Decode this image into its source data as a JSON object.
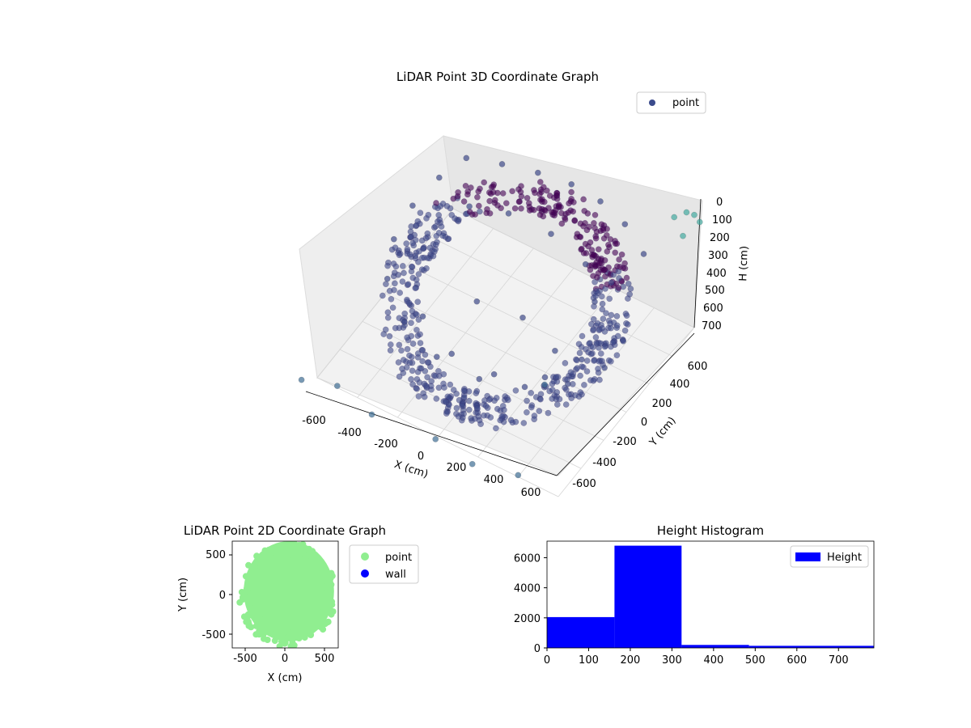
{
  "chart_data": [
    {
      "type": "scatter",
      "title": "LiDAR Point 3D Coordinate Graph",
      "xlabel": "X (cm)",
      "ylabel": "Y (cm)",
      "zlabel": "H (cm)",
      "x_ticks": [
        "-600",
        "-400",
        "-200",
        "0",
        "200",
        "400",
        "600"
      ],
      "y_ticks": [
        "-600",
        "-400",
        "-200",
        "0",
        "200",
        "400",
        "600"
      ],
      "z_ticks": [
        "0",
        "100",
        "200",
        "300",
        "400",
        "500",
        "600",
        "700"
      ],
      "xlim": [
        -600,
        600
      ],
      "ylim": [
        -600,
        600
      ],
      "zlim": [
        0,
        700
      ],
      "z_axis_inverted": true,
      "legend": [
        {
          "label": "point",
          "color": "#3b4b8c"
        }
      ],
      "legend_position": "top-right",
      "grid": true,
      "colormap": "viridis",
      "colors": {
        "dark": "#440154",
        "mid": "#3e4a89",
        "teal": "#43a9a0"
      },
      "series": [
        {
          "name": "point",
          "description_points": "ring-shaped point cloud, approx 3D samples [x, y, h]",
          "points": [
            [
              -450,
              450,
              200
            ],
            [
              -300,
              500,
              190
            ],
            [
              -150,
              550,
              195
            ],
            [
              0,
              580,
              200
            ],
            [
              150,
              570,
              205
            ],
            [
              300,
              520,
              210
            ],
            [
              450,
              420,
              215
            ],
            [
              -500,
              300,
              220
            ],
            [
              -520,
              100,
              230
            ],
            [
              -500,
              -100,
              250
            ],
            [
              -420,
              -300,
              270
            ],
            [
              -250,
              -450,
              300
            ],
            [
              -50,
              -520,
              330
            ],
            [
              150,
              -500,
              360
            ],
            [
              320,
              -400,
              390
            ],
            [
              450,
              -250,
              420
            ],
            [
              520,
              -50,
              450
            ],
            [
              500,
              150,
              470
            ],
            [
              -350,
              300,
              300
            ],
            [
              -200,
              380,
              320
            ],
            [
              0,
              400,
              340
            ],
            [
              200,
              350,
              360
            ],
            [
              330,
              200,
              380
            ],
            [
              -300,
              -200,
              500
            ],
            [
              -100,
              -300,
              520
            ],
            [
              100,
              -280,
              540
            ],
            [
              280,
              -150,
              560
            ],
            [
              350,
              50,
              580
            ],
            [
              -200,
              100,
              600
            ],
            [
              0,
              150,
              620
            ],
            [
              200,
              80,
              640
            ],
            [
              250,
              -100,
              660
            ],
            [
              600,
              600,
              50
            ],
            [
              550,
              620,
              80
            ],
            [
              500,
              600,
              120
            ],
            [
              650,
              560,
              30
            ],
            [
              600,
              500,
              90
            ],
            [
              -650,
              -650,
              700
            ],
            [
              -500,
              -600,
              690
            ],
            [
              -300,
              -650,
              700
            ],
            [
              0,
              -620,
              695
            ],
            [
              200,
              -650,
              700
            ],
            [
              400,
              -600,
              690
            ]
          ]
        }
      ]
    },
    {
      "type": "scatter",
      "title": "LiDAR Point 2D Coordinate Graph",
      "xlabel": "X (cm)",
      "ylabel": "Y (cm)",
      "x_ticks": [
        "-500",
        "0",
        "500"
      ],
      "y_ticks": [
        "500",
        "0",
        "-500"
      ],
      "xlim": [
        -680,
        680
      ],
      "ylim": [
        -680,
        680
      ],
      "legend": [
        {
          "label": "point",
          "color": "#90ee90"
        },
        {
          "label": "wall",
          "color": "#0000ff"
        }
      ],
      "legend_position": "outside-right",
      "series": [
        {
          "name": "point",
          "color": "#90ee90",
          "description": "dense filled disc of radius ~630 cm centered near origin"
        },
        {
          "name": "wall",
          "color": "#0000ff",
          "points": []
        }
      ]
    },
    {
      "type": "bar",
      "title": "Height Histogram",
      "xlabel": "",
      "ylabel": "",
      "x_ticks": [
        "0",
        "100",
        "200",
        "300",
        "400",
        "500",
        "600",
        "700"
      ],
      "y_ticks": [
        "0",
        "2000",
        "4000",
        "6000"
      ],
      "xlim": [
        0,
        785
      ],
      "ylim": [
        0,
        7100
      ],
      "bin_edges": [
        0,
        162,
        323,
        485,
        785
      ],
      "values": [
        2050,
        6800,
        200,
        140
      ],
      "legend": [
        {
          "label": "Height",
          "color": "#0000ff"
        }
      ],
      "legend_position": "top-right",
      "bar_color": "#0000ff"
    }
  ]
}
